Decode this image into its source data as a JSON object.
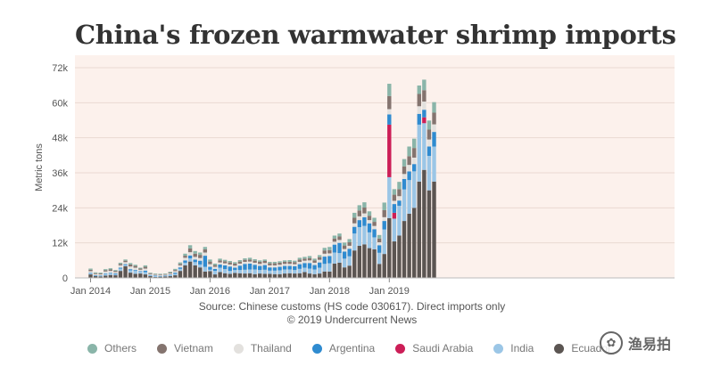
{
  "chart_data": {
    "type": "bar",
    "stacked": true,
    "title": "China's frozen warmwater shrimp imports",
    "ylabel": "Metric tons",
    "ylim": [
      0,
      72000
    ],
    "y_ticks": [
      "0",
      "12k",
      "24k",
      "36k",
      "48k",
      "60k",
      "72k"
    ],
    "y_tick_values": [
      0,
      12000,
      24000,
      36000,
      48000,
      60000,
      72000
    ],
    "x_ticks": [
      "Jan 2014",
      "Jan 2015",
      "Jan 2016",
      "Jan 2017",
      "Jan 2018",
      "Jan 2019"
    ],
    "grid": true,
    "legend_position": "bottom",
    "categories": [
      "2014-01",
      "2014-02",
      "2014-03",
      "2014-04",
      "2014-05",
      "2014-06",
      "2014-07",
      "2014-08",
      "2014-09",
      "2014-10",
      "2014-11",
      "2014-12",
      "2015-01",
      "2015-02",
      "2015-03",
      "2015-04",
      "2015-05",
      "2015-06",
      "2015-07",
      "2015-08",
      "2015-09",
      "2015-10",
      "2015-11",
      "2015-12",
      "2016-01",
      "2016-02",
      "2016-03",
      "2016-04",
      "2016-05",
      "2016-06",
      "2016-07",
      "2016-08",
      "2016-09",
      "2016-10",
      "2016-11",
      "2016-12",
      "2017-01",
      "2017-02",
      "2017-03",
      "2017-04",
      "2017-05",
      "2017-06",
      "2017-07",
      "2017-08",
      "2017-09",
      "2017-10",
      "2017-11",
      "2017-12",
      "2018-01",
      "2018-02",
      "2018-03",
      "2018-04",
      "2018-05",
      "2018-06",
      "2018-07",
      "2018-08",
      "2018-09",
      "2018-10",
      "2018-11",
      "2018-12",
      "2019-01",
      "2019-02",
      "2019-03",
      "2019-04",
      "2019-05",
      "2019-06",
      "2019-07",
      "2019-08",
      "2019-09",
      "2019-10"
    ],
    "series": [
      {
        "name": "Ecuador",
        "color": "#5b5552",
        "values": [
          1200,
          600,
          500,
          800,
          1000,
          900,
          2400,
          4000,
          1800,
          1400,
          1500,
          1200,
          600,
          300,
          400,
          500,
          600,
          900,
          2400,
          4300,
          5600,
          4300,
          3600,
          2200,
          2300,
          1200,
          2000,
          1600,
          1400,
          1700,
          1600,
          1500,
          1600,
          1300,
          1500,
          1400,
          1400,
          1300,
          1300,
          1500,
          1600,
          1500,
          1600,
          2000,
          1500,
          1300,
          1500,
          2200,
          2200,
          4900,
          5200,
          3600,
          4200,
          9400,
          11000,
          11500,
          10200,
          9800,
          4800,
          8200,
          20500,
          12500,
          14500,
          19500,
          22000,
          24000,
          33000,
          37000,
          30000,
          33000
        ]
      },
      {
        "name": "India",
        "color": "#9bc6e6",
        "values": [
          300,
          200,
          200,
          600,
          500,
          300,
          800,
          400,
          800,
          1000,
          600,
          800,
          300,
          300,
          200,
          200,
          300,
          500,
          700,
          900,
          1100,
          1100,
          1000,
          1600,
          500,
          1200,
          1500,
          1400,
          1000,
          1000,
          1100,
          1300,
          1300,
          1600,
          1200,
          1400,
          1100,
          1200,
          1300,
          1400,
          1300,
          1200,
          1500,
          1500,
          1700,
          1600,
          2000,
          2600,
          2800,
          3800,
          3300,
          3000,
          3200,
          5800,
          6400,
          6300,
          5400,
          4100,
          3800,
          8400,
          14000,
          7800,
          10200,
          10800,
          11500,
          12500,
          19500,
          16000,
          11800,
          12000
        ]
      },
      {
        "name": "Saudi Arabia",
        "color": "#cc1e57",
        "values": [
          0,
          0,
          0,
          0,
          0,
          0,
          0,
          0,
          0,
          0,
          0,
          0,
          0,
          0,
          0,
          0,
          0,
          0,
          0,
          0,
          0,
          0,
          0,
          0,
          0,
          0,
          0,
          0,
          0,
          0,
          0,
          0,
          0,
          0,
          0,
          0,
          0,
          0,
          0,
          0,
          0,
          0,
          0,
          0,
          0,
          0,
          0,
          0,
          0,
          0,
          0,
          0,
          0,
          0,
          0,
          0,
          0,
          0,
          0,
          0,
          18000,
          2000,
          0,
          0,
          0,
          0,
          0,
          2000,
          0,
          0
        ]
      },
      {
        "name": "Argentina",
        "color": "#2f8bd0",
        "values": [
          200,
          100,
          100,
          200,
          200,
          300,
          300,
          300,
          400,
          300,
          200,
          500,
          100,
          200,
          100,
          100,
          200,
          400,
          500,
          800,
          1000,
          900,
          1300,
          3800,
          1000,
          700,
          1100,
          1300,
          1500,
          800,
          1500,
          2000,
          2000,
          1600,
          1400,
          1600,
          1100,
          1100,
          1200,
          1200,
          1200,
          1300,
          1600,
          1600,
          1900,
          1500,
          1800,
          2500,
          2500,
          2700,
          3500,
          2400,
          2600,
          2300,
          2400,
          3000,
          3100,
          2800,
          2600,
          2900,
          3500,
          3000,
          1800,
          3600,
          3000,
          2500,
          3700,
          2600,
          3200,
          5000
        ]
      },
      {
        "name": "Thailand",
        "color": "#e3e1de",
        "values": [
          600,
          400,
          400,
          600,
          700,
          500,
          800,
          700,
          900,
          800,
          500,
          700,
          300,
          300,
          300,
          300,
          400,
          500,
          700,
          900,
          1100,
          900,
          900,
          1100,
          900,
          700,
          700,
          700,
          700,
          700,
          700,
          700,
          700,
          700,
          700,
          700,
          700,
          700,
          700,
          700,
          700,
          700,
          800,
          800,
          900,
          800,
          900,
          1000,
          900,
          1000,
          1000,
          900,
          1000,
          1200,
          1300,
          1300,
          1100,
          1100,
          1000,
          1300,
          1800,
          1100,
          1500,
          1700,
          2200,
          2200,
          2600,
          2800,
          2400,
          2600
        ]
      },
      {
        "name": "Vietnam",
        "color": "#84746f",
        "values": [
          500,
          300,
          300,
          400,
          500,
          400,
          500,
          500,
          700,
          600,
          400,
          600,
          300,
          200,
          200,
          200,
          300,
          400,
          500,
          700,
          1300,
          1100,
          1100,
          1100,
          900,
          600,
          700,
          700,
          700,
          700,
          700,
          700,
          700,
          700,
          700,
          700,
          700,
          700,
          700,
          700,
          700,
          700,
          800,
          700,
          800,
          800,
          900,
          1100,
          1100,
          1100,
          1200,
          1200,
          1200,
          1900,
          2000,
          2000,
          1500,
          1400,
          1300,
          2400,
          4500,
          2100,
          2400,
          2600,
          3000,
          3300,
          4200,
          3900,
          3400,
          4000
        ]
      },
      {
        "name": "Others",
        "color": "#8ab5a9",
        "values": [
          400,
          300,
          300,
          400,
          400,
          300,
          400,
          400,
          500,
          400,
          300,
          500,
          200,
          200,
          200,
          200,
          300,
          400,
          500,
          700,
          1100,
          900,
          800,
          800,
          700,
          500,
          600,
          500,
          500,
          500,
          500,
          500,
          600,
          500,
          500,
          500,
          500,
          500,
          500,
          500,
          600,
          500,
          600,
          600,
          700,
          600,
          700,
          900,
          1100,
          1000,
          1000,
          1000,
          1100,
          1700,
          1800,
          1800,
          1500,
          1400,
          1200,
          2600,
          4200,
          1900,
          2500,
          2500,
          3300,
          3200,
          2900,
          3600,
          3100,
          3600
        ]
      }
    ]
  },
  "source_line1": "Source: Chinese customs (HS code 030617). Direct imports only",
  "source_line2": "© 2019 Undercurrent News",
  "watermark": {
    "text": "渔易拍",
    "glyph": "✿"
  }
}
